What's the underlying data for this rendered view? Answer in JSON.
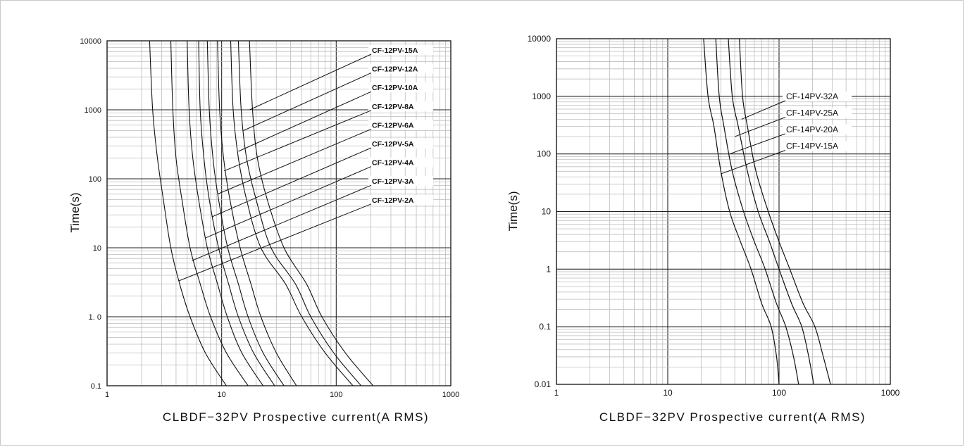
{
  "chart_data": [
    {
      "type": "line",
      "xscale": "log",
      "yscale": "log",
      "xlim": [
        1,
        1000
      ],
      "ylim": [
        0.1,
        10000
      ],
      "xlabel": "CLBDF−32PV Prospective current(A RMS)",
      "ylabel": "Time(s)",
      "grid": true,
      "xticks": [
        "1",
        "10",
        "100",
        "1000"
      ],
      "yticks": [
        "0.1",
        "1. 0",
        "10",
        "100",
        "1000",
        "10000"
      ],
      "legend_placement": "upper-right (leader lines)",
      "series": [
        {
          "name": "CF-12PV-15A",
          "points": [
            [
              17.5,
              10000
            ],
            [
              18.6,
              1000
            ],
            [
              20.5,
              200
            ],
            [
              25,
              50
            ],
            [
              35,
              10
            ],
            [
              55,
              3
            ],
            [
              75,
              1
            ],
            [
              120,
              0.3
            ],
            [
              210,
              0.1
            ]
          ]
        },
        {
          "name": "CF-12PV-12A",
          "points": [
            [
              14,
              10000
            ],
            [
              14.8,
              1000
            ],
            [
              16.5,
              200
            ],
            [
              20,
              50
            ],
            [
              27,
              10
            ],
            [
              44,
              3
            ],
            [
              60,
              1
            ],
            [
              95,
              0.3
            ],
            [
              165,
              0.1
            ]
          ]
        },
        {
          "name": "CF-12PV-10A",
          "points": [
            [
              12,
              10000
            ],
            [
              12.6,
              1000
            ],
            [
              14,
              200
            ],
            [
              16.5,
              50
            ],
            [
              22,
              10
            ],
            [
              36,
              3
            ],
            [
              50,
              1
            ],
            [
              80,
              0.3
            ],
            [
              140,
              0.1
            ]
          ]
        },
        {
          "name": "CF-12PV-8A",
          "points": [
            [
              9.2,
              10000
            ],
            [
              9.6,
              1000
            ],
            [
              10.4,
              200
            ],
            [
              11.8,
              50
            ],
            [
              14.5,
              10
            ],
            [
              18,
              3
            ],
            [
              22,
              1
            ],
            [
              30,
              0.3
            ],
            [
              45,
              0.1
            ]
          ]
        },
        {
          "name": "CF-12PV-6A",
          "points": [
            [
              7.5,
              10000
            ],
            [
              7.8,
              1000
            ],
            [
              8.4,
              200
            ],
            [
              9.4,
              50
            ],
            [
              11.3,
              10
            ],
            [
              14,
              3
            ],
            [
              17,
              1
            ],
            [
              23,
              0.3
            ],
            [
              35,
              0.1
            ]
          ]
        },
        {
          "name": "CF-12PV-5A",
          "points": [
            [
              6.3,
              10000
            ],
            [
              6.5,
              1000
            ],
            [
              7,
              200
            ],
            [
              7.8,
              50
            ],
            [
              9.4,
              10
            ],
            [
              11.5,
              3
            ],
            [
              14,
              1
            ],
            [
              19,
              0.3
            ],
            [
              29,
              0.1
            ]
          ]
        },
        {
          "name": "CF-12PV-4A",
          "points": [
            [
              5,
              10000
            ],
            [
              5.2,
              1000
            ],
            [
              5.6,
              200
            ],
            [
              6.3,
              50
            ],
            [
              7.5,
              10
            ],
            [
              9.2,
              3
            ],
            [
              11.2,
              1
            ],
            [
              15,
              0.3
            ],
            [
              23,
              0.1
            ]
          ]
        },
        {
          "name": "CF-12PV-3A",
          "points": [
            [
              3.6,
              10000
            ],
            [
              3.75,
              1000
            ],
            [
              4,
              200
            ],
            [
              4.5,
              50
            ],
            [
              5.3,
              10
            ],
            [
              6.5,
              3
            ],
            [
              8,
              1
            ],
            [
              11,
              0.3
            ],
            [
              17,
              0.1
            ]
          ]
        },
        {
          "name": "CF-12PV-2A",
          "points": [
            [
              2.35,
              10000
            ],
            [
              2.5,
              1000
            ],
            [
              2.75,
              200
            ],
            [
              3.1,
              50
            ],
            [
              3.6,
              10
            ],
            [
              4.3,
              3
            ],
            [
              5.3,
              1
            ],
            [
              7.2,
              0.3
            ],
            [
              11,
              0.1
            ]
          ]
        }
      ],
      "legend_points": [
        [
          17.5,
          1000
        ],
        [
          15.5,
          500
        ],
        [
          14,
          250
        ],
        [
          10.5,
          130
        ],
        [
          9.2,
          60
        ],
        [
          8.2,
          28
        ],
        [
          7.3,
          14
        ],
        [
          5.5,
          6.5
        ],
        [
          4.2,
          3.3
        ]
      ]
    },
    {
      "type": "line",
      "xscale": "log",
      "yscale": "log",
      "xlim": [
        1,
        1000
      ],
      "ylim": [
        0.01,
        10000
      ],
      "xlabel": "CLBDF−32PV Prospective current(A RMS)",
      "ylabel": "Time(s)",
      "grid": true,
      "xticks": [
        "1",
        "10",
        "100",
        "1000"
      ],
      "yticks": [
        "0.01",
        "0.1",
        "1",
        "10",
        "100",
        "1000",
        "10000"
      ],
      "legend_placement": "upper-right (leader lines)",
      "series": [
        {
          "name": "CF-14PV-32A",
          "points": [
            [
              44,
              10000
            ],
            [
              47,
              1000
            ],
            [
              52,
              300
            ],
            [
              62,
              50
            ],
            [
              80,
              10
            ],
            [
              100,
              3
            ],
            [
              125,
              1
            ],
            [
              165,
              0.25
            ],
            [
              210,
              0.1
            ],
            [
              250,
              0.03
            ],
            [
              290,
              0.01
            ]
          ]
        },
        {
          "name": "CF-14PV-25A",
          "points": [
            [
              35,
              10000
            ],
            [
              38,
              1000
            ],
            [
              43,
              300
            ],
            [
              52,
              50
            ],
            [
              65,
              10
            ],
            [
              82,
              3
            ],
            [
              100,
              1
            ],
            [
              130,
              0.25
            ],
            [
              160,
              0.1
            ],
            [
              185,
              0.03
            ],
            [
              205,
              0.01
            ]
          ]
        },
        {
          "name": "CF-14PV-20A",
          "points": [
            [
              27,
              10000
            ],
            [
              29,
              1000
            ],
            [
              32,
              300
            ],
            [
              38,
              50
            ],
            [
              48,
              10
            ],
            [
              60,
              3
            ],
            [
              75,
              1
            ],
            [
              95,
              0.25
            ],
            [
              115,
              0.1
            ],
            [
              135,
              0.03
            ],
            [
              150,
              0.01
            ]
          ]
        },
        {
          "name": "CF-14PV-15A",
          "points": [
            [
              21,
              10000
            ],
            [
              23,
              1000
            ],
            [
              26,
              300
            ],
            [
              30,
              50
            ],
            [
              36,
              10
            ],
            [
              45,
              3
            ],
            [
              56,
              1
            ],
            [
              70,
              0.25
            ],
            [
              85,
              0.1
            ],
            [
              95,
              0.03
            ],
            [
              100,
              0.01
            ]
          ]
        }
      ],
      "legend_points": [
        [
          46,
          400
        ],
        [
          40,
          200
        ],
        [
          36,
          100
        ],
        [
          30,
          45
        ]
      ]
    }
  ]
}
